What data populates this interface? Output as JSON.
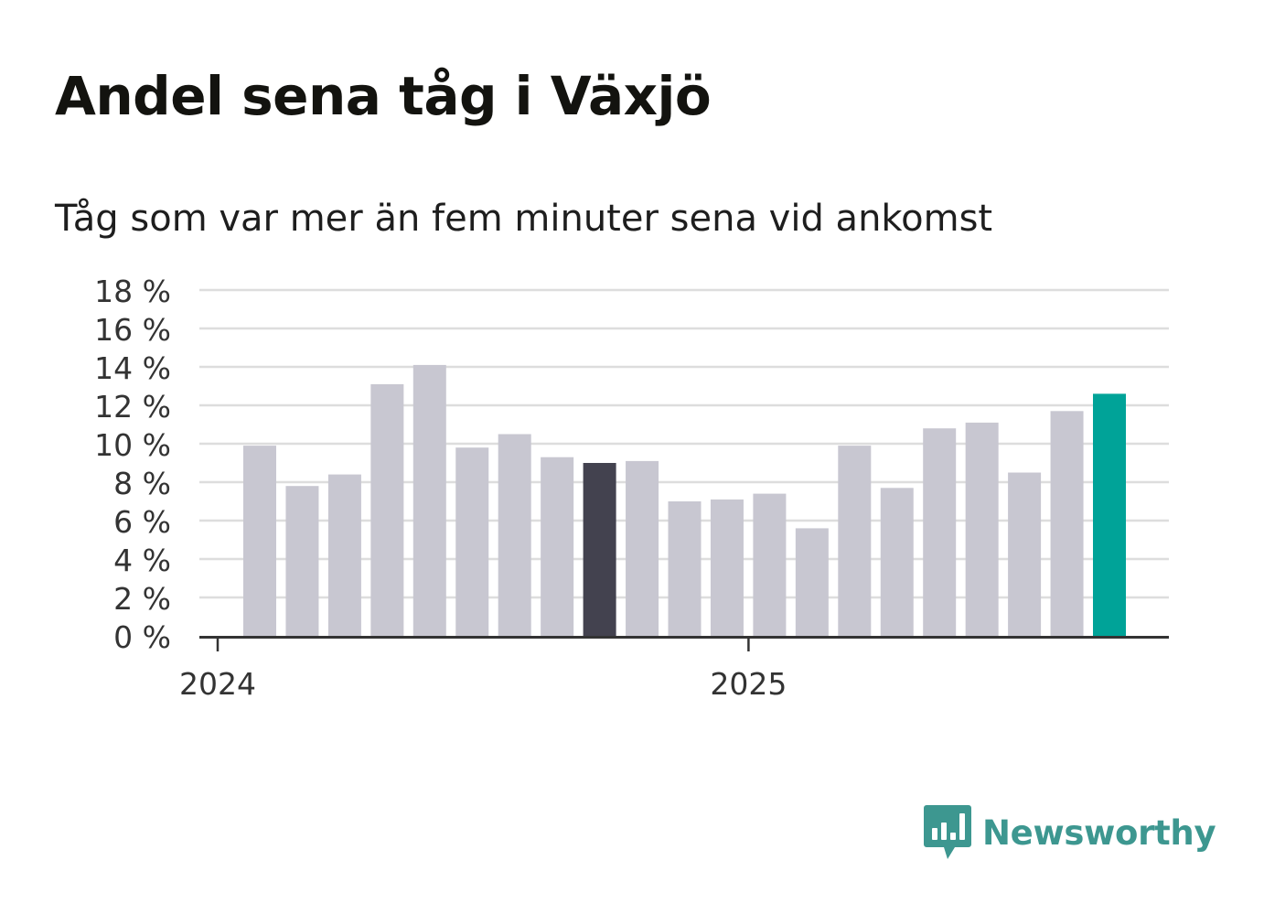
{
  "title": "Andel sena tåg i Växjö",
  "subtitle": "Tåg som var mer än fem minuter sena vid ankomst",
  "brand": {
    "name": "Newsworthy",
    "icon": "newsworthy-logo-icon",
    "color": "#3d9790"
  },
  "colors": {
    "bar": "#c8c7d1",
    "highlight_previous": "#43424f",
    "highlight_latest": "#00a398",
    "grid": "#dddddd",
    "axis": "#333333"
  },
  "chart_data": {
    "type": "bar",
    "categories": [
      "2024-01",
      "2024-02",
      "2024-03",
      "2024-04",
      "2024-05",
      "2024-06",
      "2024-07",
      "2024-08",
      "2024-09",
      "2024-10",
      "2024-11",
      "2024-12",
      "2025-01",
      "2025-02",
      "2025-03",
      "2025-04",
      "2025-05",
      "2025-06",
      "2025-07",
      "2025-08",
      "2025-09"
    ],
    "values": [
      9.9,
      7.8,
      8.4,
      13.1,
      14.1,
      9.8,
      10.5,
      9.3,
      9.0,
      9.1,
      7.0,
      7.1,
      7.4,
      5.6,
      9.9,
      7.7,
      10.8,
      11.1,
      8.5,
      11.7,
      12.6
    ],
    "highlight": {
      "previous_year_same_month": "2024-09",
      "latest": "2025-09"
    },
    "ylim": [
      0,
      18
    ],
    "yticks": [
      0,
      2,
      4,
      6,
      8,
      10,
      12,
      14,
      16,
      18
    ],
    "ytick_labels": [
      "0 %",
      "2 %",
      "4 %",
      "6 %",
      "8 %",
      "10 %",
      "12 %",
      "14 %",
      "16 %",
      "18 %"
    ],
    "x_tick_labels": [
      {
        "label": "2024",
        "at": "2024-01"
      },
      {
        "label": "2025",
        "at": "2025-01"
      }
    ],
    "grid": true
  }
}
